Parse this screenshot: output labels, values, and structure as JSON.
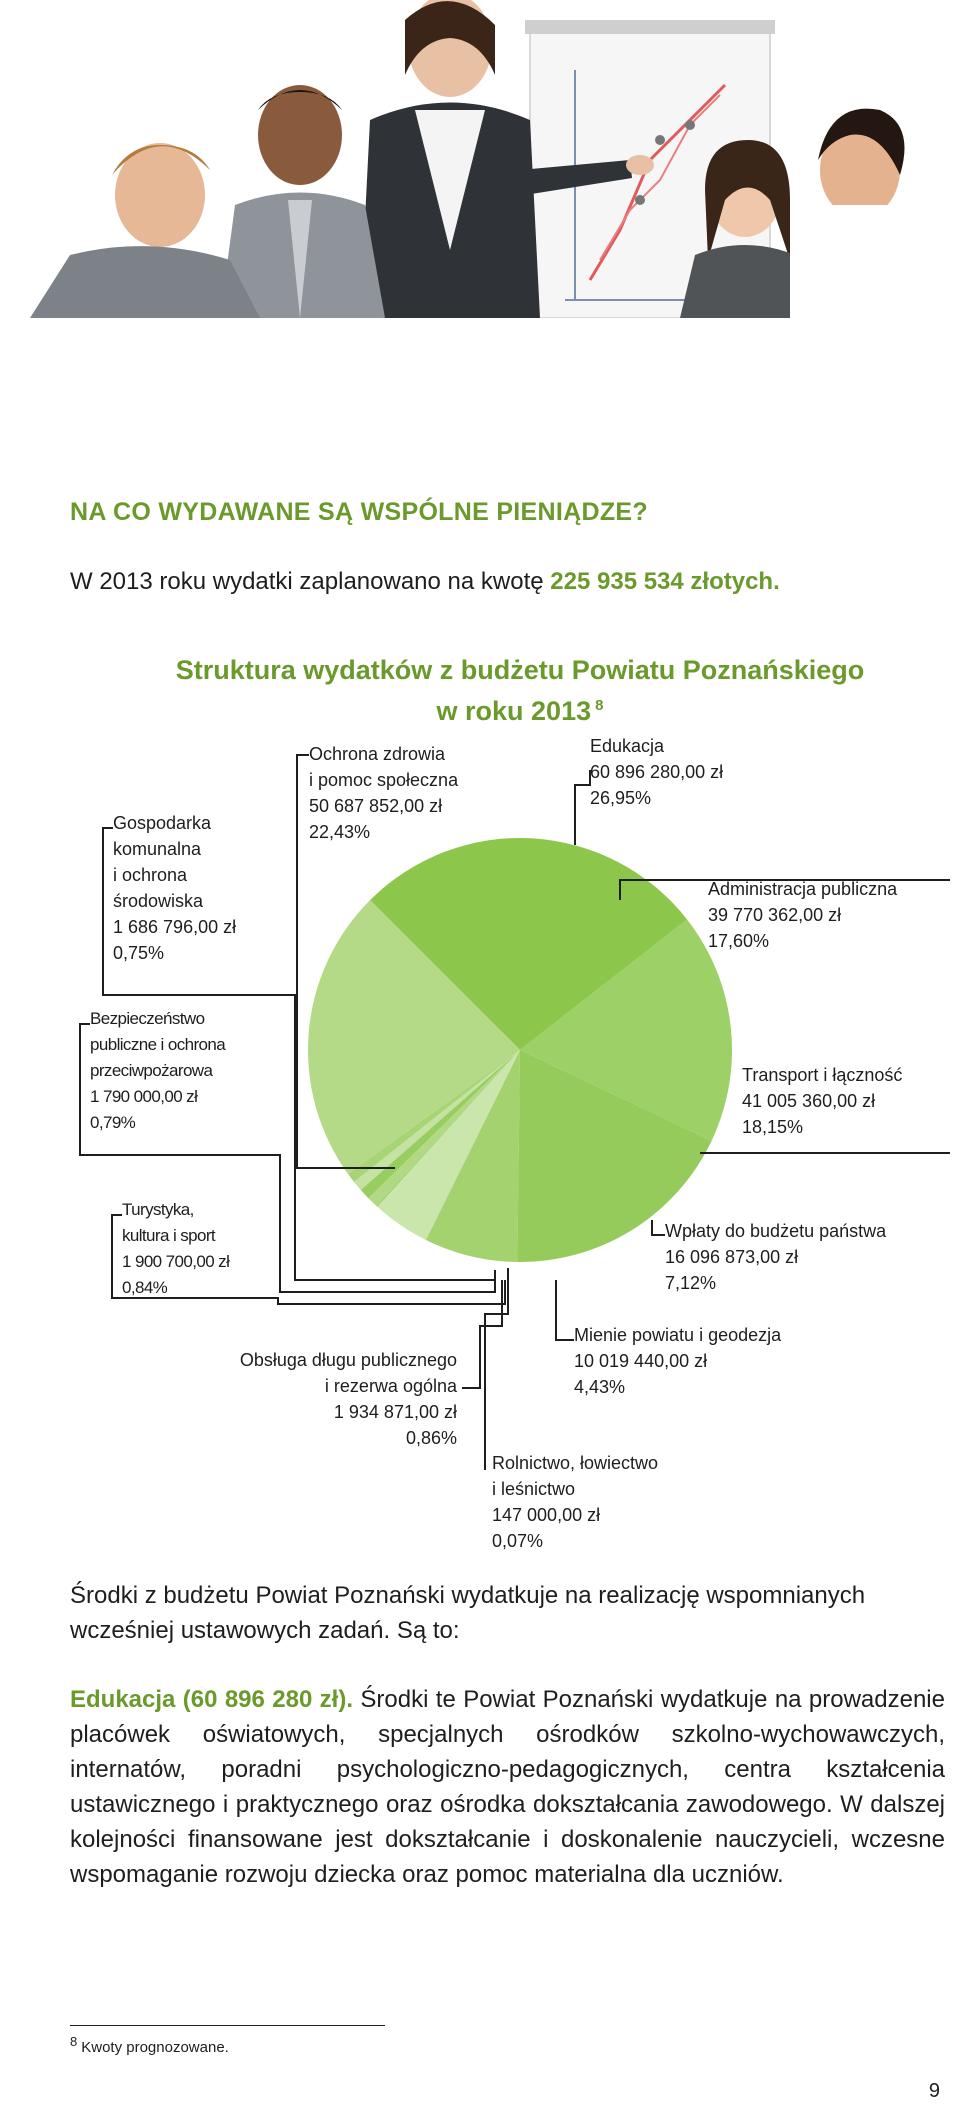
{
  "header_image": {
    "alt": "business-presentation-photo"
  },
  "section": {
    "heading": "NA CO WYDAWANE SĄ WSPÓLNE PIENIĄDZE?",
    "intro_prefix": "W 2013 roku wydatki zaplanowano na kwotę ",
    "intro_amount": "225 935 534 złotych."
  },
  "chart_data": {
    "type": "pie",
    "title_line1": "Struktura wydatków z budżetu Powiatu Poznańskiego",
    "title_line2": "w roku 2013",
    "title_note": "8",
    "start_angle_deg": -38,
    "direction": "counterclockwise",
    "slices": [
      {
        "label_lines": [
          "Edukacja"
        ],
        "value_text": "60 896 280,00 zł",
        "percent_text": "26,95%",
        "value": 26.95,
        "color": "#8cc64a"
      },
      {
        "label_lines": [
          "Ochrona zdrowia",
          "i pomoc społeczna"
        ],
        "value_text": "50 687 852,00 zł",
        "percent_text": "22,43%",
        "value": 22.43,
        "color": "#b5da87"
      },
      {
        "label_lines": [
          "Gospodarka",
          "komunalna",
          "i ochrona",
          "środowiska"
        ],
        "value_text": "1 686 796,00 zł",
        "percent_text": "0,75%",
        "value": 0.75,
        "color": "#a7d475"
      },
      {
        "label_lines": [
          "Bezpieczeństwo",
          "publiczne i ochrona",
          "przeciwpożarowa"
        ],
        "value_text": "1 790 000,00 zł",
        "percent_text": "0,79%",
        "value": 0.79,
        "color": "#c4e2a1"
      },
      {
        "label_lines": [
          "Turystyka,",
          "kultura i sport"
        ],
        "value_text": "1 900 700,00 zł",
        "percent_text": "0,84%",
        "value": 0.84,
        "color": "#98cd60"
      },
      {
        "label_lines": [
          "Obsługa długu publicznego",
          "i rezerwa ogólna"
        ],
        "value_text": "1 934 871,00 zł",
        "percent_text": "0,86%",
        "value": 0.86,
        "color": "#b1d983"
      },
      {
        "label_lines": [
          "Rolnictwo, łowiectwo",
          "i leśnictwo"
        ],
        "value_text": "147 000,00 zł",
        "percent_text": "0,07%",
        "value": 0.07,
        "color": "#8fc855"
      },
      {
        "label_lines": [
          "Mienie powiatu i geodezja"
        ],
        "value_text": "10 019 440,00 zł",
        "percent_text": "4,43%",
        "value": 4.43,
        "color": "#cbe6ad"
      },
      {
        "label_lines": [
          "Wpłaty do budżetu państwa"
        ],
        "value_text": "16 096 873,00 zł",
        "percent_text": "7,12%",
        "value": 7.12,
        "color": "#a3d26f"
      },
      {
        "label_lines": [
          "Transport i łączność"
        ],
        "value_text": "41 005 360,00 zł",
        "percent_text": "18,15%",
        "value": 18.15,
        "color": "#94cb5a"
      },
      {
        "label_lines": [
          "Administracja publiczna"
        ],
        "value_text": "39 770 362,00 zł",
        "percent_text": "17,60%",
        "value": 17.6,
        "color": "#9dd066"
      }
    ]
  },
  "paragraphs": {
    "p1": "Środki z budżetu Powiat Poznański wydatkuje na realizację wspomnianych wcześniej ustawowych zadań. Są to:",
    "p2_highlight": "Edukacja (60 896 280 zł).",
    "p2_body": " Środki te Powiat Poznański wydatkuje na prowadzenie placówek oświatowych, specjalnych ośrodków szkolno-wychowawczych, internatów, poradni psychologiczno-pedagogicznych, centra kształcenia ustawicznego i praktycznego oraz ośrodka dokształcania zawodowego. W dalszej kolejności finansowane jest dokształcanie i doskonalenie nauczycieli, wczesne wspomaganie rozwoju dziecka oraz pomoc materialna dla uczniów."
  },
  "footnote": {
    "number": "8",
    "text": "Kwoty prognozowane."
  },
  "page_number": "9"
}
